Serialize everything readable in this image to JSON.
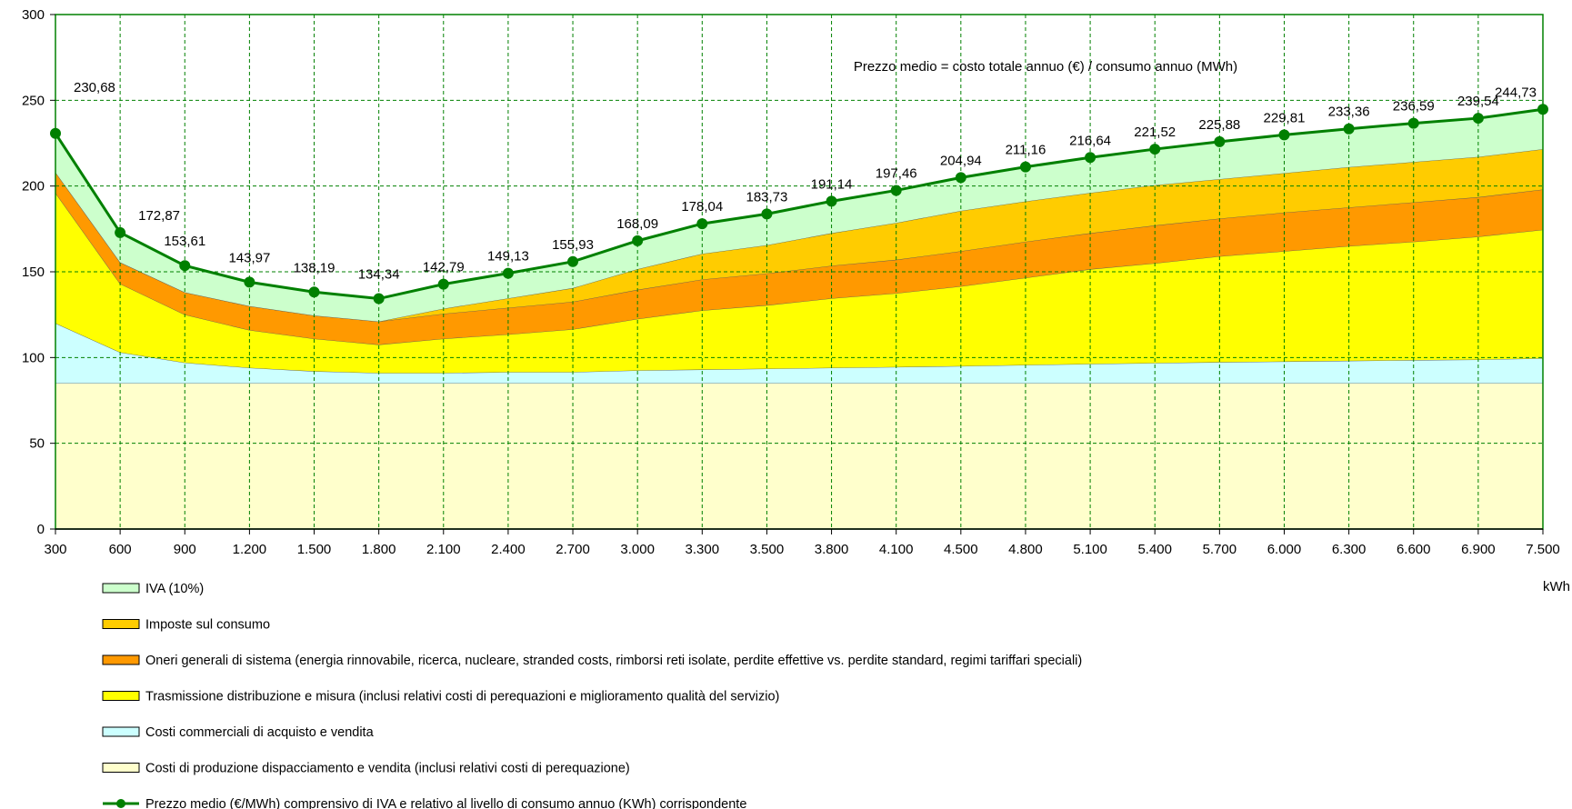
{
  "chart_data": {
    "type": "area",
    "title": "",
    "xlabel": "kWh",
    "ylabel": "",
    "ylim": [
      0,
      300
    ],
    "y_ticks": [
      0,
      50,
      100,
      150,
      200,
      250,
      300
    ],
    "categories": [
      "300",
      "600",
      "900",
      "1.200",
      "1.500",
      "1.800",
      "2.100",
      "2.400",
      "2.700",
      "3.000",
      "3.300",
      "3.500",
      "3.800",
      "4.100",
      "4.500",
      "4.800",
      "5.100",
      "5.400",
      "5.700",
      "6.000",
      "6.300",
      "6.600",
      "6.900",
      "7.500"
    ],
    "gridlines": "dashed, green",
    "annotation": "Prezzo medio = costo totale annuo (€) / consumo annuo (MWh)",
    "stacked_series": [
      {
        "name": "Costi di produzione dispacciamento e vendita (inclusi relativi costi di perequazione)",
        "color": "#FFFFCC",
        "values": [
          85,
          85,
          85,
          85,
          85,
          85,
          85,
          85,
          85,
          85,
          85,
          85,
          85,
          85,
          85,
          85,
          85,
          85,
          85,
          85,
          85,
          85,
          85,
          85
        ]
      },
      {
        "name": "Costi commerciali di acquisto e vendita",
        "color": "#CCFFFF",
        "values": [
          120,
          103,
          97,
          94,
          92,
          91,
          91,
          91.5,
          91.5,
          92.5,
          93,
          93.5,
          94,
          94.5,
          95,
          95.7,
          96.3,
          96.8,
          97.3,
          97.7,
          98.1,
          98.5,
          98.8,
          99.5
        ]
      },
      {
        "name": "Trasmissione distribuzione e misura (inclusi relativi costi di perequazioni e miglioramento qualità del servizio)",
        "color": "#FFFF00",
        "values": [
          196,
          143,
          125,
          116,
          111,
          107.5,
          111,
          113.5,
          116.5,
          122.5,
          127.5,
          130.5,
          134.5,
          137.5,
          141.5,
          146.5,
          151.5,
          155,
          159,
          162,
          165,
          167.5,
          170.5,
          174.5
        ]
      },
      {
        "name": "Oneri generali di sistema (energia rinnovabile, ricerca, nucleare, stranded costs, rimborsi reti isolate, perdite effettive vs. perdite standard, regimi tariffari speciali)",
        "color": "#FF9900",
        "values": [
          208,
          155.5,
          138,
          130,
          124.5,
          121,
          125.5,
          129,
          132.5,
          139.5,
          145.5,
          149,
          153.5,
          157,
          162,
          167.5,
          172.5,
          177,
          181,
          184.5,
          187.5,
          190.5,
          193.5,
          198
        ]
      },
      {
        "name": "Imposte sul consumo",
        "color": "#FFCC00",
        "values": [
          208,
          155.5,
          138,
          130,
          124.5,
          121,
          128.5,
          134.5,
          140.5,
          151.5,
          160.5,
          165.5,
          172.5,
          178.5,
          185.5,
          191,
          196,
          200.5,
          204,
          207.5,
          211,
          214,
          217,
          221.5
        ]
      },
      {
        "name": "IVA (10%)",
        "color": "#CCFFCC",
        "values": [
          230.68,
          172.87,
          153.61,
          143.97,
          138.19,
          134.34,
          142.79,
          149.13,
          155.93,
          168.09,
          178.04,
          183.73,
          191.14,
          197.46,
          204.94,
          211.16,
          216.64,
          221.52,
          225.88,
          229.81,
          233.36,
          236.59,
          239.54,
          244.73
        ]
      }
    ],
    "line_series": {
      "name": "Prezzo medio (€/MWh) comprensivo di IVA e relativo al livello di consumo annuo (KWh) corrispondente",
      "color": "#008000",
      "values": [
        230.68,
        172.87,
        153.61,
        143.97,
        138.19,
        134.34,
        142.79,
        149.13,
        155.93,
        168.09,
        178.04,
        183.73,
        191.14,
        197.46,
        204.94,
        211.16,
        216.64,
        221.52,
        225.88,
        229.81,
        233.36,
        236.59,
        239.54,
        244.73
      ],
      "labels": [
        "230,68",
        "172,87",
        "153,61",
        "143,97",
        "138,19",
        "134,34",
        "142,79",
        "149,13",
        "155,93",
        "168,09",
        "178,04",
        "183,73",
        "191,14",
        "197,46",
        "204,94",
        "211,16",
        "216,64",
        "221,52",
        "225,88",
        "229,81",
        "233,36",
        "236,59",
        "239,54",
        "244,73"
      ]
    },
    "legend": {
      "placement": "bottom-left",
      "entries": [
        {
          "label": "IVA (10%)",
          "color": "#CCFFCC",
          "kind": "box"
        },
        {
          "label": "Imposte sul consumo",
          "color": "#FFCC00",
          "kind": "box"
        },
        {
          "label": "Oneri generali di sistema (energia rinnovabile, ricerca, nucleare, stranded costs, rimborsi reti isolate, perdite effettive vs. perdite standard, regimi tariffari speciali)",
          "color": "#FF9900",
          "kind": "box"
        },
        {
          "label": "Trasmissione distribuzione e misura (inclusi relativi costi di perequazioni e miglioramento qualità del servizio)",
          "color": "#FFFF00",
          "kind": "box"
        },
        {
          "label": "Costi commerciali di acquisto e vendita",
          "color": "#CCFFFF",
          "kind": "box"
        },
        {
          "label": "Costi di produzione dispacciamento e vendita (inclusi relativi costi di perequazione)",
          "color": "#FFFFCC",
          "kind": "box"
        },
        {
          "label": "Prezzo medio (€/MWh) comprensivo di IVA e relativo al livello di consumo annuo (KWh) corrispondente",
          "color": "#008000",
          "kind": "line"
        }
      ]
    }
  }
}
